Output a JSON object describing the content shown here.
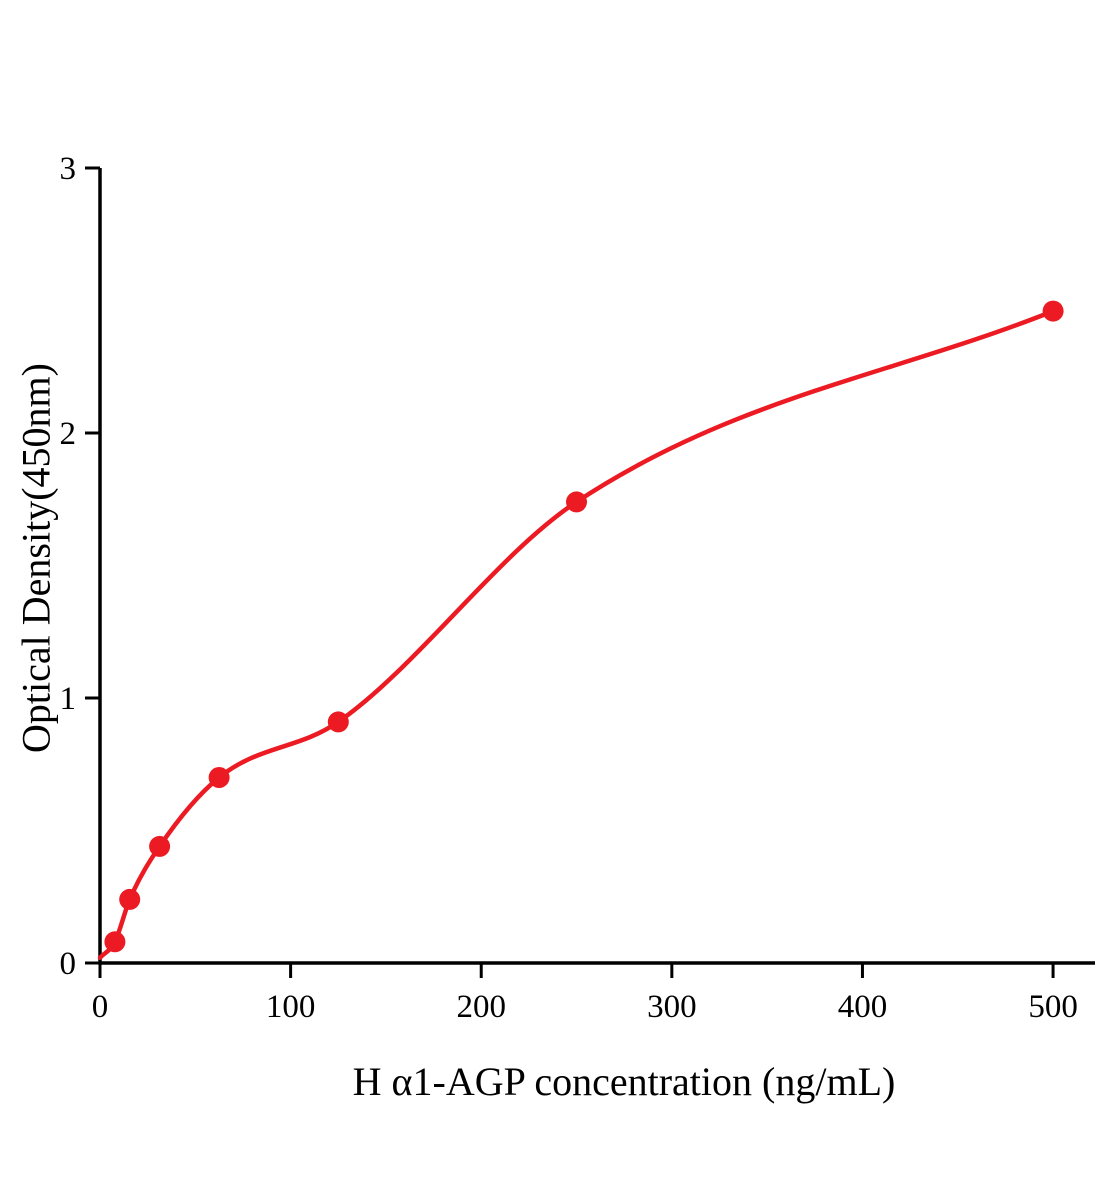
{
  "chart_data": {
    "type": "scatter",
    "title": "",
    "xlabel": "H α1-AGP concentration (ng/mL)",
    "ylabel": "Optical Density(450nm)",
    "x": [
      7.8,
      15.6,
      31.25,
      62.5,
      125,
      250,
      500
    ],
    "y": [
      0.08,
      0.24,
      0.44,
      0.7,
      0.91,
      1.74,
      2.46
    ],
    "curve_start": [
      0,
      0.02
    ],
    "xlim": [
      0,
      522
    ],
    "ylim": [
      0,
      3
    ],
    "x_ticks": [
      0,
      100,
      200,
      300,
      400,
      500
    ],
    "y_ticks": [
      0,
      1,
      2,
      3
    ],
    "grid": false,
    "legend": "none",
    "marker_color": "#ec1b23",
    "line_color": "#ec1b23",
    "axis_color": "#000000"
  }
}
